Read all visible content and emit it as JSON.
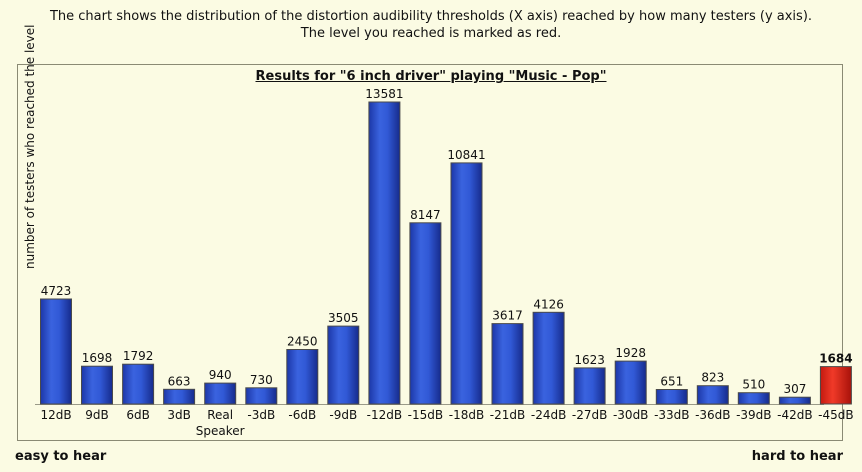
{
  "intro": {
    "line1": "The chart shows the distribution of the distortion audibility thresholds (X axis) reached by how many testers (y axis).",
    "line2": "The level you reached is marked as red."
  },
  "footer": {
    "left": "easy to hear",
    "right": "hard to hear"
  },
  "chart_data": {
    "type": "bar",
    "title": "Results for \"6 inch driver\" playing \"Music - Pop\"",
    "ylabel": "number of testers who reached the level",
    "xlabel": "",
    "categories": [
      "12dB",
      "9dB",
      "6dB",
      "3dB",
      "Real\nSpeaker",
      "-3dB",
      "-6dB",
      "-9dB",
      "-12dB",
      "-15dB",
      "-18dB",
      "-21dB",
      "-24dB",
      "-27dB",
      "-30dB",
      "-33dB",
      "-36dB",
      "-39dB",
      "-42dB",
      "-45dB"
    ],
    "values": [
      4723,
      1698,
      1792,
      663,
      940,
      730,
      2450,
      3505,
      13581,
      8147,
      10841,
      3617,
      4126,
      1623,
      1928,
      651,
      823,
      510,
      307,
      1684
    ],
    "highlight_index": 19,
    "colors": {
      "bar": "#2446c9",
      "highlight": "#e0261a"
    },
    "ylim": [
      0,
      13581
    ],
    "grid": false
  }
}
